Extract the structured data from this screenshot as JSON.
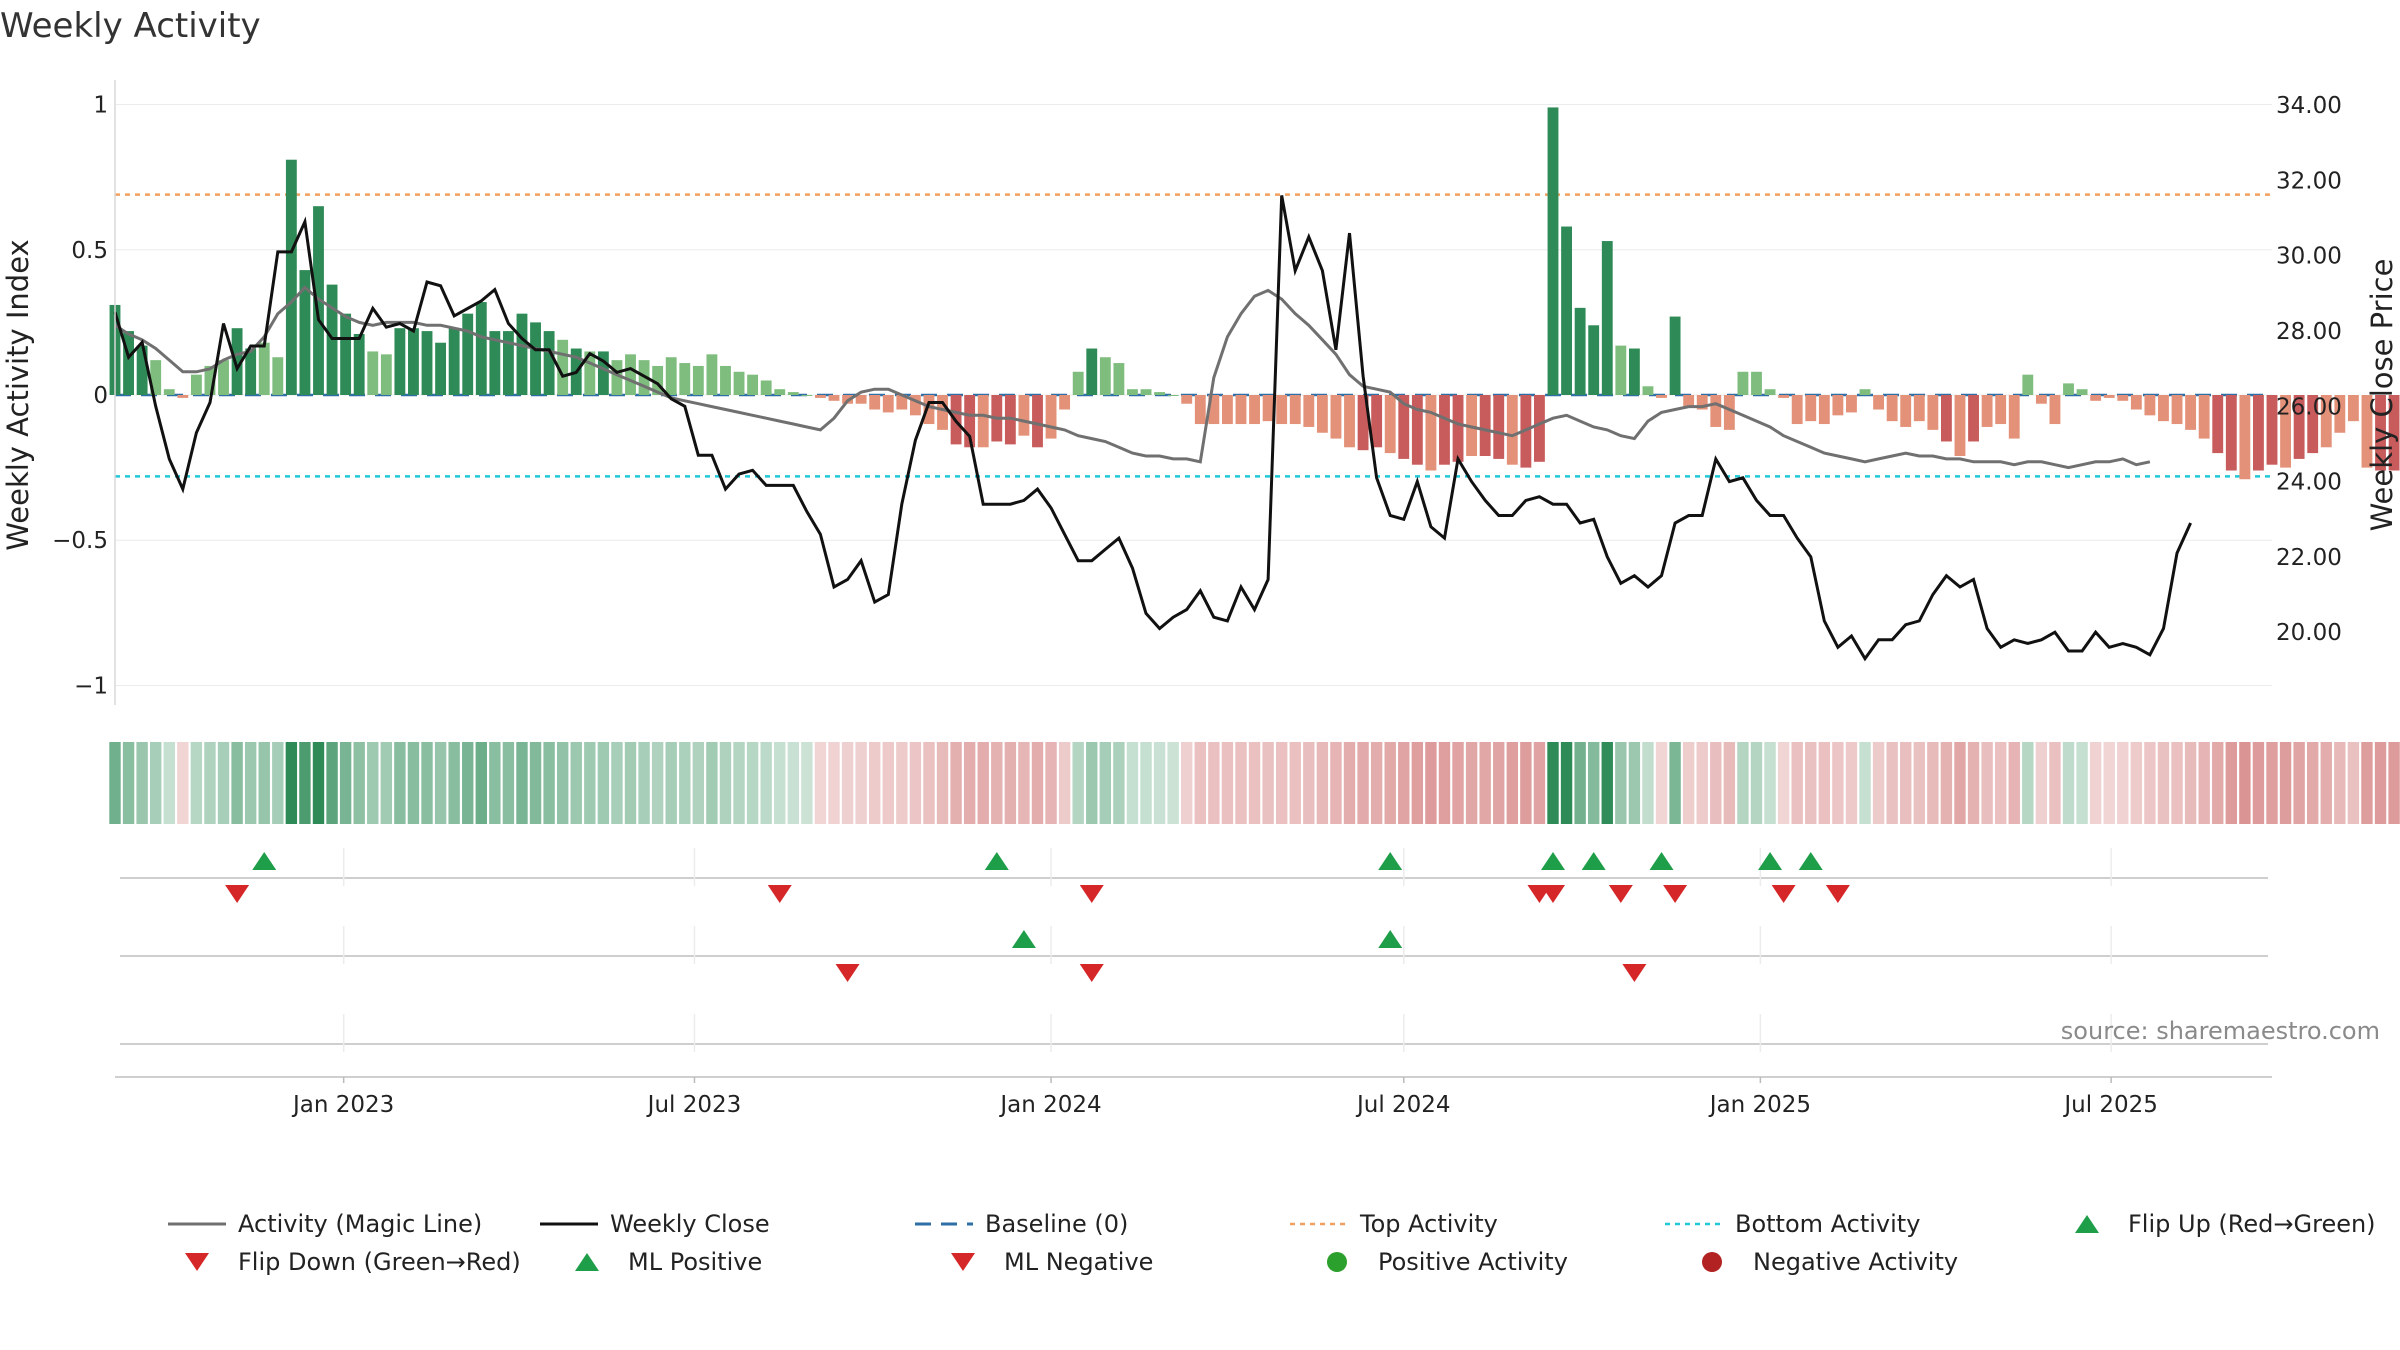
{
  "chart_data": {
    "type": "bar",
    "title": "Weekly Activity",
    "ylabel": "Weekly Activity Index",
    "y2label": "Weekly Close Price",
    "ylim": [
      -1.05,
      1.05
    ],
    "y2lim": [
      18.2,
      34.4
    ],
    "yticks": [
      1,
      0.5,
      0,
      -0.5,
      -1
    ],
    "ytick_labels": [
      "1",
      "0.5",
      "0",
      "−0.5",
      "−1"
    ],
    "y2ticks": [
      34,
      32,
      30,
      28,
      26,
      24,
      22,
      20
    ],
    "y2tick_labels": [
      "34.00",
      "32.00",
      "30.00",
      "28.00",
      "26.00",
      "24.00",
      "22.00",
      "20.00"
    ],
    "xlim": [
      "2022-09-05",
      "2025-09-22"
    ],
    "xticks": [
      "2023-01-01",
      "2023-07-01",
      "2024-01-01",
      "2024-07-01",
      "2025-01-01",
      "2025-07-01"
    ],
    "xtick_labels": [
      "Jan 2023",
      "Jul 2023",
      "Jan 2024",
      "Jul 2024",
      "Jan 2025",
      "Jul 2025"
    ],
    "top_activity": 0.69,
    "bottom_activity": -0.28,
    "baseline": 0,
    "grid": true,
    "legend_position": "bottom",
    "source": "source: sharemaestro.com",
    "series": [
      {
        "name": "Weekly Activity",
        "type": "bar",
        "start": "2022-09-05",
        "interval_days": 7,
        "values": [
          0.31,
          0.22,
          0.17,
          0.12,
          0.02,
          -0.01,
          0.07,
          0.1,
          0.12,
          0.23,
          0.16,
          0.18,
          0.13,
          0.81,
          0.43,
          0.65,
          0.38,
          0.28,
          0.21,
          0.15,
          0.14,
          0.23,
          0.23,
          0.22,
          0.18,
          0.23,
          0.28,
          0.32,
          0.22,
          0.22,
          0.28,
          0.25,
          0.22,
          0.19,
          0.16,
          0.15,
          0.15,
          0.12,
          0.14,
          0.12,
          0.1,
          0.13,
          0.11,
          0.1,
          0.14,
          0.1,
          0.08,
          0.07,
          0.05,
          0.02,
          0.01,
          0.0,
          -0.01,
          -0.02,
          -0.03,
          -0.03,
          -0.05,
          -0.06,
          -0.05,
          -0.07,
          -0.1,
          -0.12,
          -0.17,
          -0.18,
          -0.18,
          -0.16,
          -0.17,
          -0.14,
          -0.18,
          -0.15,
          -0.05,
          0.08,
          0.16,
          0.13,
          0.11,
          0.02,
          0.02,
          0.01,
          0.0,
          -0.03,
          -0.1,
          -0.1,
          -0.1,
          -0.1,
          -0.1,
          -0.09,
          -0.1,
          -0.1,
          -0.11,
          -0.13,
          -0.15,
          -0.18,
          -0.19,
          -0.18,
          -0.2,
          -0.22,
          -0.24,
          -0.26,
          -0.24,
          -0.23,
          -0.21,
          -0.21,
          -0.22,
          -0.24,
          -0.25,
          -0.23,
          0.99,
          0.58,
          0.3,
          0.24,
          0.53,
          0.17,
          0.16,
          0.03,
          -0.01,
          0.27,
          -0.04,
          -0.05,
          -0.11,
          -0.12,
          0.08,
          0.08,
          0.02,
          -0.01,
          -0.1,
          -0.09,
          -0.1,
          -0.07,
          -0.06,
          0.02,
          -0.05,
          -0.09,
          -0.11,
          -0.09,
          -0.12,
          -0.16,
          -0.21,
          -0.16,
          -0.11,
          -0.1,
          -0.15,
          0.07,
          -0.03,
          -0.1,
          0.04,
          0.02,
          -0.02,
          -0.01,
          -0.02,
          -0.05,
          -0.07,
          -0.09,
          -0.1,
          -0.12,
          -0.15,
          -0.2,
          -0.26,
          -0.29,
          -0.26,
          -0.24,
          -0.25,
          -0.22,
          -0.2,
          -0.18,
          -0.13,
          -0.09,
          -0.25,
          -0.26,
          -0.26,
          -0.26,
          -0.27,
          -0.26,
          -0.26,
          -0.26,
          -0.27,
          -0.27,
          -0.27,
          -0.28,
          -0.3,
          -0.17,
          -0.1
        ]
      },
      {
        "name": "Weekly Close",
        "type": "line",
        "color": "#111111",
        "start": "2022-09-05",
        "interval_days": 7,
        "values": [
          28.5,
          27.3,
          27.7,
          26.0,
          24.6,
          23.8,
          25.3,
          26.1,
          28.2,
          27.0,
          27.6,
          27.6,
          30.1,
          30.1,
          30.9,
          28.3,
          27.8,
          27.8,
          27.8,
          28.6,
          28.1,
          28.2,
          28.0,
          29.3,
          29.2,
          28.4,
          28.6,
          28.8,
          29.1,
          28.2,
          27.8,
          27.5,
          27.5,
          26.8,
          26.9,
          27.4,
          27.2,
          26.9,
          27.0,
          26.8,
          26.6,
          26.2,
          26.0,
          24.7,
          24.7,
          23.8,
          24.2,
          24.3,
          23.9,
          23.9,
          23.9,
          23.2,
          22.6,
          21.2,
          21.4,
          21.9,
          20.8,
          21.0,
          23.4,
          25.1,
          26.1,
          26.1,
          25.6,
          25.2,
          23.4,
          23.4,
          23.4,
          23.5,
          23.8,
          23.3,
          22.6,
          21.9,
          21.9,
          22.2,
          22.5,
          21.7,
          20.5,
          20.1,
          20.4,
          20.6,
          21.1,
          20.4,
          20.3,
          21.2,
          20.6,
          21.4,
          31.6,
          29.6,
          30.5,
          29.6,
          27.5,
          30.6,
          26.8,
          24.1,
          23.1,
          23.0,
          24.0,
          22.8,
          22.5,
          24.6,
          24.0,
          23.5,
          23.1,
          23.1,
          23.5,
          23.6,
          23.4,
          23.4,
          22.9,
          23.0,
          22.0,
          21.3,
          21.5,
          21.2,
          21.5,
          22.9,
          23.1,
          23.1,
          24.6,
          24.0,
          24.1,
          23.5,
          23.1,
          23.1,
          22.5,
          22.0,
          20.3,
          19.6,
          19.9,
          19.3,
          19.8,
          19.8,
          20.2,
          20.3,
          21.0,
          21.5,
          21.2,
          21.4,
          20.1,
          19.6,
          19.8,
          19.7,
          19.8,
          20.0,
          19.5,
          19.5,
          20.0,
          19.6,
          19.7,
          19.6,
          19.4,
          20.1,
          22.1,
          22.9
        ]
      },
      {
        "name": "Activity (Magic Line)",
        "type": "line",
        "color": "#707070",
        "start": "2022-09-05",
        "interval_days": 7,
        "values": [
          0.24,
          0.21,
          0.19,
          0.16,
          0.12,
          0.08,
          0.08,
          0.09,
          0.12,
          0.14,
          0.15,
          0.2,
          0.28,
          0.32,
          0.37,
          0.33,
          0.3,
          0.27,
          0.25,
          0.24,
          0.25,
          0.25,
          0.25,
          0.24,
          0.24,
          0.23,
          0.22,
          0.2,
          0.19,
          0.18,
          0.17,
          0.16,
          0.15,
          0.14,
          0.13,
          0.11,
          0.09,
          0.07,
          0.05,
          0.03,
          0.01,
          -0.01,
          -0.02,
          -0.03,
          -0.04,
          -0.05,
          -0.06,
          -0.07,
          -0.08,
          -0.09,
          -0.1,
          -0.11,
          -0.12,
          -0.08,
          -0.02,
          0.01,
          0.02,
          0.02,
          0.0,
          -0.02,
          -0.04,
          -0.05,
          -0.06,
          -0.07,
          -0.07,
          -0.08,
          -0.08,
          -0.09,
          -0.1,
          -0.11,
          -0.12,
          -0.14,
          -0.15,
          -0.16,
          -0.18,
          -0.2,
          -0.21,
          -0.21,
          -0.22,
          -0.22,
          -0.23,
          0.06,
          0.2,
          0.28,
          0.34,
          0.36,
          0.33,
          0.28,
          0.24,
          0.19,
          0.14,
          0.07,
          0.03,
          0.02,
          0.01,
          -0.03,
          -0.05,
          -0.06,
          -0.08,
          -0.1,
          -0.11,
          -0.12,
          -0.13,
          -0.14,
          -0.12,
          -0.1,
          -0.08,
          -0.07,
          -0.09,
          -0.11,
          -0.12,
          -0.14,
          -0.15,
          -0.09,
          -0.06,
          -0.05,
          -0.04,
          -0.04,
          -0.03,
          -0.05,
          -0.07,
          -0.09,
          -0.11,
          -0.14,
          -0.16,
          -0.18,
          -0.2,
          -0.21,
          -0.22,
          -0.23,
          -0.22,
          -0.21,
          -0.2,
          -0.21,
          -0.21,
          -0.22,
          -0.22,
          -0.23,
          -0.23,
          -0.23,
          -0.24,
          -0.23,
          -0.23,
          -0.24,
          -0.25,
          -0.24,
          -0.23,
          -0.23,
          -0.22,
          -0.24,
          -0.23
        ]
      }
    ],
    "colors": {
      "positive_strong": "#2e8b57",
      "positive_light": "#7ebd7e",
      "negative_strong": "#c85c5c",
      "negative_light": "#e39178",
      "top_line": "#f0a060",
      "bottom_line": "#22c8d8",
      "baseline": "#2e6fa8",
      "up_marker": "#1f9e4a",
      "down_marker": "#d62728",
      "positive_dot": "#2ca02c",
      "negative_dot": "#b22222"
    },
    "signals": {
      "flip_up": [
        "2022-11-21",
        "2023-12-04",
        "2024-06-24",
        "2024-09-16",
        "2024-10-07",
        "2024-11-11",
        "2025-01-06",
        "2025-01-27"
      ],
      "flip_down": [
        "2022-11-07",
        "2023-08-14",
        "2024-01-22",
        "2024-09-09",
        "2024-09-16",
        "2024-10-21",
        "2024-11-18",
        "2025-01-13",
        "2025-02-10"
      ],
      "ml_positive": [
        "2023-12-18",
        "2024-06-24"
      ],
      "ml_negative": [
        "2023-09-18",
        "2024-01-22",
        "2024-10-28"
      ]
    }
  },
  "legend": [
    {
      "label": "Activity (Magic Line)",
      "icon": "gray-line"
    },
    {
      "label": "Weekly Close",
      "icon": "black-line"
    },
    {
      "label": "Baseline (0)",
      "icon": "blue-dashed-line"
    },
    {
      "label": "Top Activity",
      "icon": "orange-dotted-line"
    },
    {
      "label": "Bottom Activity",
      "icon": "cyan-dotted-line"
    },
    {
      "label": "Flip Up (Red→Green)",
      "icon": "green-up-triangle"
    },
    {
      "label": "Flip Down (Green→Red)",
      "icon": "red-down-triangle"
    },
    {
      "label": "ML Positive",
      "icon": "green-up-triangle"
    },
    {
      "label": "ML Negative",
      "icon": "red-down-triangle"
    },
    {
      "label": "Positive Activity",
      "icon": "green-dot"
    },
    {
      "label": "Negative Activity",
      "icon": "red-dot"
    }
  ]
}
